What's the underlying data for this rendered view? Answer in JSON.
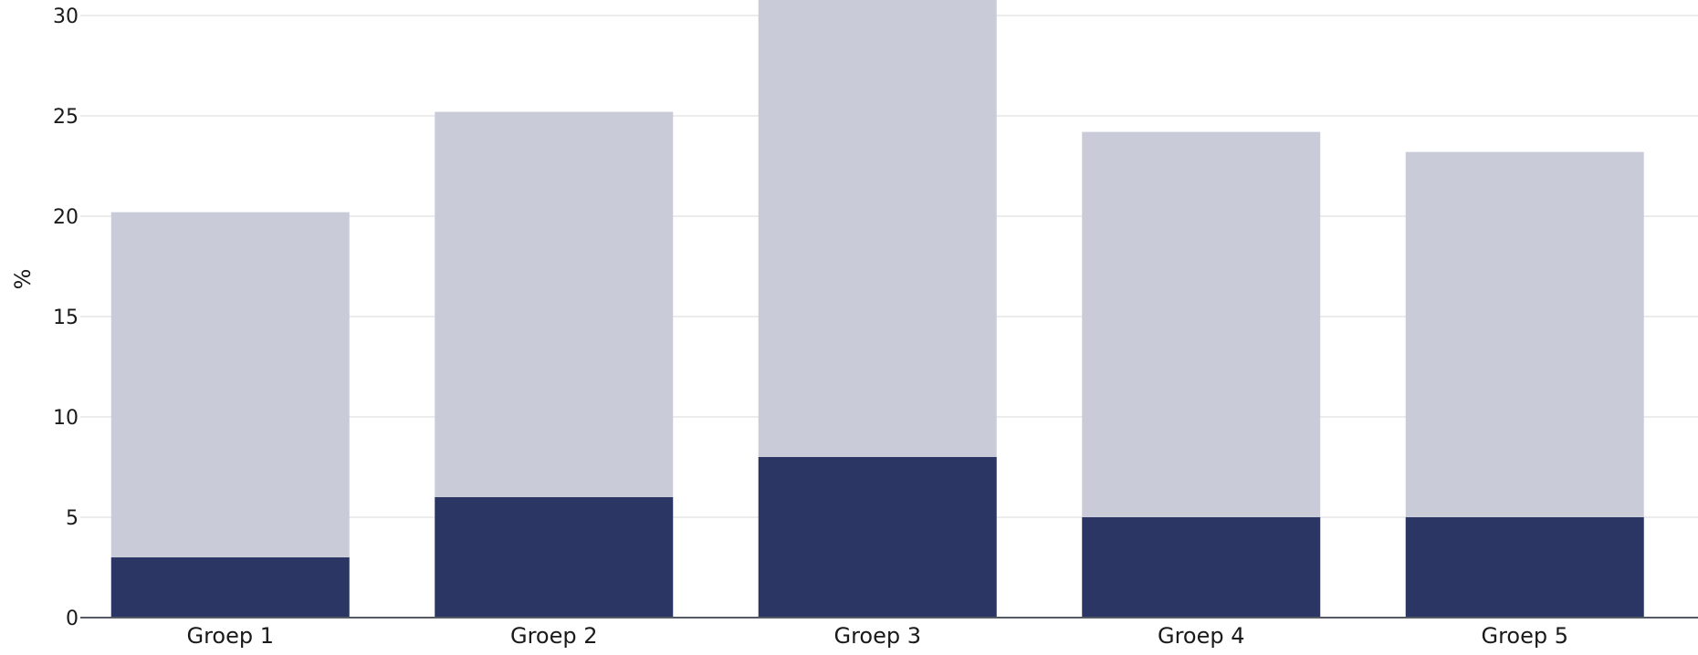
{
  "chart_data": {
    "type": "bar",
    "stacked": true,
    "categories": [
      "Groep 1",
      "Groep 2",
      "Groep 3",
      "Groep 4",
      "Groep 5"
    ],
    "series": [
      {
        "values": [
          3,
          6,
          8,
          5,
          5
        ],
        "color": "#2b3664"
      },
      {
        "values": [
          17.2,
          19.2,
          23.0,
          19.2,
          18.2
        ],
        "color": "#c9ccd8"
      }
    ],
    "title": "",
    "xlabel": "",
    "ylabel": "%",
    "ylim": [
      0,
      30
    ],
    "yticks": [
      "0",
      "5",
      "10",
      "15",
      "20",
      "25",
      "30"
    ],
    "grid": true,
    "legend": "none"
  }
}
